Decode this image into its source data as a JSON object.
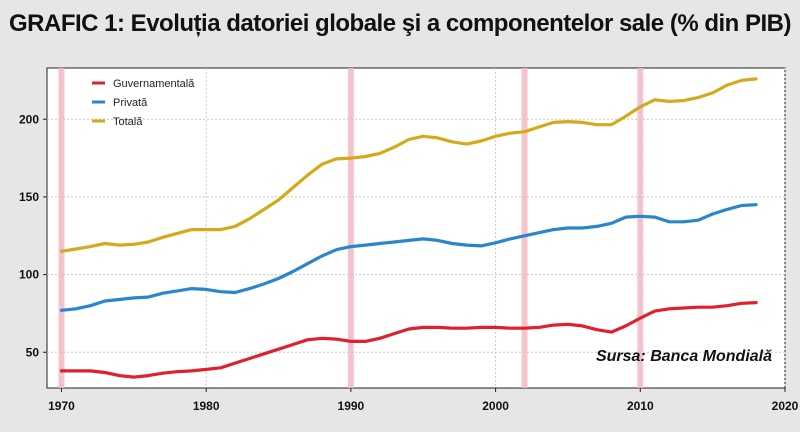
{
  "title": "GRAFIC 1: Evoluția datoriei globale şi a componentelor sale (% din PIB)",
  "source_note": "Sursa: Banca Mondială",
  "chart_data": {
    "type": "line",
    "title": "GRAFIC 1: Evoluția datoriei globale şi a componentelor sale (% din PIB)",
    "xlim": [
      1969,
      2020
    ],
    "ylim": [
      27,
      233
    ],
    "x_ticks": [
      1970,
      1980,
      1990,
      2000,
      2010,
      2020
    ],
    "y_ticks": [
      50,
      100,
      150,
      200
    ],
    "grid": true,
    "legend_position": "top-left",
    "highlight_years": [
      1970,
      1990,
      2002,
      2010
    ],
    "x": [
      1970,
      1971,
      1972,
      1973,
      1974,
      1975,
      1976,
      1977,
      1978,
      1979,
      1980,
      1981,
      1982,
      1983,
      1984,
      1985,
      1986,
      1987,
      1988,
      1989,
      1990,
      1991,
      1992,
      1993,
      1994,
      1995,
      1996,
      1997,
      1998,
      1999,
      2000,
      2001,
      2002,
      2003,
      2004,
      2005,
      2006,
      2007,
      2008,
      2009,
      2010,
      2011,
      2012,
      2013,
      2014,
      2015,
      2016,
      2017,
      2018
    ],
    "series": [
      {
        "name": "Guvernamentală",
        "color": "#e0202a",
        "values": [
          38,
          38,
          38,
          37,
          35,
          34,
          35,
          36.5,
          37.5,
          38,
          39,
          40,
          43,
          46,
          49,
          52,
          55,
          58,
          59,
          58.5,
          57,
          57,
          59,
          62,
          65,
          66,
          66,
          65.5,
          65.5,
          66,
          66,
          65.5,
          65.5,
          66,
          67.5,
          68,
          67,
          64.5,
          63,
          67,
          72,
          76.5,
          78,
          78.5,
          79,
          79,
          80,
          81.5,
          82
        ]
      },
      {
        "name": "Privată",
        "color": "#2986cc",
        "values": [
          77,
          78,
          80,
          83,
          84,
          85,
          85.5,
          88,
          89.5,
          91,
          90.5,
          89,
          88.5,
          91,
          94,
          97.5,
          102,
          107,
          112,
          116,
          118,
          119,
          120,
          121,
          122,
          123,
          122,
          120,
          119,
          118.5,
          120.5,
          123,
          125,
          127,
          129,
          130,
          130,
          131,
          133,
          137,
          137.5,
          137,
          134,
          134,
          135,
          139,
          142,
          144.5,
          145
        ]
      },
      {
        "name": "Totală",
        "color": "#d4aa1c",
        "values": [
          115,
          116.5,
          118,
          120,
          119,
          119.5,
          121,
          124,
          126.5,
          129,
          129,
          129,
          131,
          136,
          142,
          148,
          156,
          164,
          171,
          174.5,
          175,
          176,
          178,
          182,
          187,
          189,
          188,
          185.5,
          184,
          186,
          189,
          191,
          192,
          195,
          198,
          198.5,
          198,
          196.5,
          196.5,
          202,
          208,
          212.5,
          211.5,
          212,
          214,
          217,
          222,
          225,
          226
        ]
      }
    ]
  }
}
